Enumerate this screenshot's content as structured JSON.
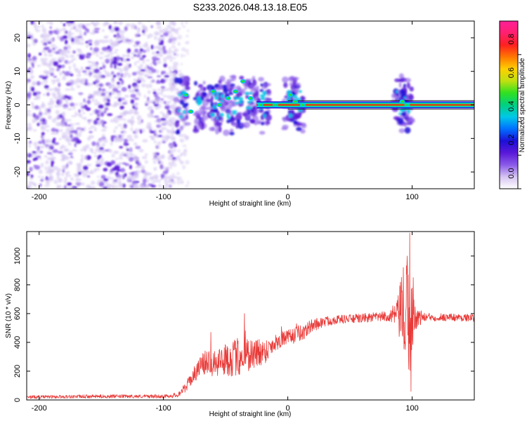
{
  "chart_data": [
    {
      "type": "heatmap",
      "title": "S233.2026.048.13.18.E05",
      "xlabel": "Height of straight line (km)",
      "ylabel": "Frequency (Hz)",
      "xlim": [
        -210,
        150
      ],
      "ylim": [
        -25,
        25
      ],
      "xticks": [
        -200,
        -100,
        0,
        100
      ],
      "yticks": [
        -20,
        -10,
        0,
        10,
        20
      ],
      "colorbar": {
        "label": "Normalized spectral amplitude",
        "range": [
          0,
          1
        ],
        "ticks": [
          "0.0",
          "0.2",
          "0.4",
          "0.6",
          "0.8"
        ],
        "tick_values": [
          0.0,
          0.2,
          0.4,
          0.6,
          0.8
        ],
        "colormap": [
          "#ffffff",
          "#d6c4f2",
          "#8a5ae8",
          "#5a18d8",
          "#1c10d8",
          "#0070ff",
          "#00c8e8",
          "#00d080",
          "#30e020",
          "#c0e010",
          "#ffd000",
          "#ff7800",
          "#ff2020",
          "#ff2070",
          "#ff2098"
        ]
      },
      "features": {
        "noise_region_km": [
          -210,
          -90
        ],
        "signal_lane_km": [
          -90,
          150
        ],
        "signal_frequency_hz": 0,
        "disturbances_km": [
          -85,
          -70,
          -58,
          -50,
          -40,
          -30,
          -20,
          2,
          8,
          90,
          95
        ]
      }
    },
    {
      "type": "line",
      "xlabel": "Height of straight line (km)",
      "ylabel": "SNR (10 * v/v)",
      "xlim": [
        -210,
        150
      ],
      "ylim": [
        0,
        1170
      ],
      "xticks": [
        -200,
        -100,
        0,
        100
      ],
      "yticks": [
        0,
        200,
        400,
        600,
        800,
        1000
      ],
      "series": [
        {
          "name": "SNR",
          "color": "#e83a38",
          "points": [
            [
              -210,
              20
            ],
            [
              -150,
              25
            ],
            [
              -100,
              25
            ],
            [
              -92,
              30
            ],
            [
              -88,
              40
            ],
            [
              -82,
              90
            ],
            [
              -76,
              170
            ],
            [
              -70,
              240
            ],
            [
              -64,
              270
            ],
            [
              -56,
              270
            ],
            [
              -48,
              280
            ],
            [
              -40,
              300
            ],
            [
              -34,
              320
            ],
            [
              -26,
              320
            ],
            [
              -18,
              340
            ],
            [
              -10,
              400
            ],
            [
              -2,
              430
            ],
            [
              6,
              450
            ],
            [
              14,
              480
            ],
            [
              20,
              520
            ],
            [
              30,
              545
            ],
            [
              40,
              560
            ],
            [
              55,
              565
            ],
            [
              70,
              575
            ],
            [
              85,
              585
            ],
            [
              92,
              600
            ],
            [
              96,
              560
            ],
            [
              100,
              570
            ],
            [
              110,
              575
            ],
            [
              130,
              575
            ],
            [
              150,
              570
            ]
          ],
          "noise_amplitude": [
            [
              -210,
              12
            ],
            [
              -95,
              12
            ],
            [
              -85,
              25
            ],
            [
              -70,
              70
            ],
            [
              -60,
              110
            ],
            [
              -50,
              110
            ],
            [
              -40,
              140
            ],
            [
              -30,
              120
            ],
            [
              -20,
              90
            ],
            [
              -10,
              60
            ],
            [
              0,
              50
            ],
            [
              10,
              60
            ],
            [
              20,
              45
            ],
            [
              40,
              30
            ],
            [
              80,
              35
            ],
            [
              88,
              100
            ],
            [
              94,
              380
            ],
            [
              98,
              450
            ],
            [
              102,
              90
            ],
            [
              110,
              30
            ],
            [
              150,
              25
            ]
          ],
          "peaks": [
            [
              -62,
              470
            ],
            [
              -56,
              320
            ],
            [
              -50,
              380
            ],
            [
              -46,
              330
            ],
            [
              -40,
              410
            ],
            [
              -35,
              600
            ],
            [
              -34,
              480
            ],
            [
              -23,
              420
            ],
            [
              -5,
              510
            ],
            [
              7,
              530
            ],
            [
              12,
              420
            ],
            [
              93,
              920
            ],
            [
              96,
              1000
            ],
            [
              98,
              1160
            ],
            [
              99,
              60
            ],
            [
              101,
              850
            ]
          ]
        }
      ]
    }
  ]
}
